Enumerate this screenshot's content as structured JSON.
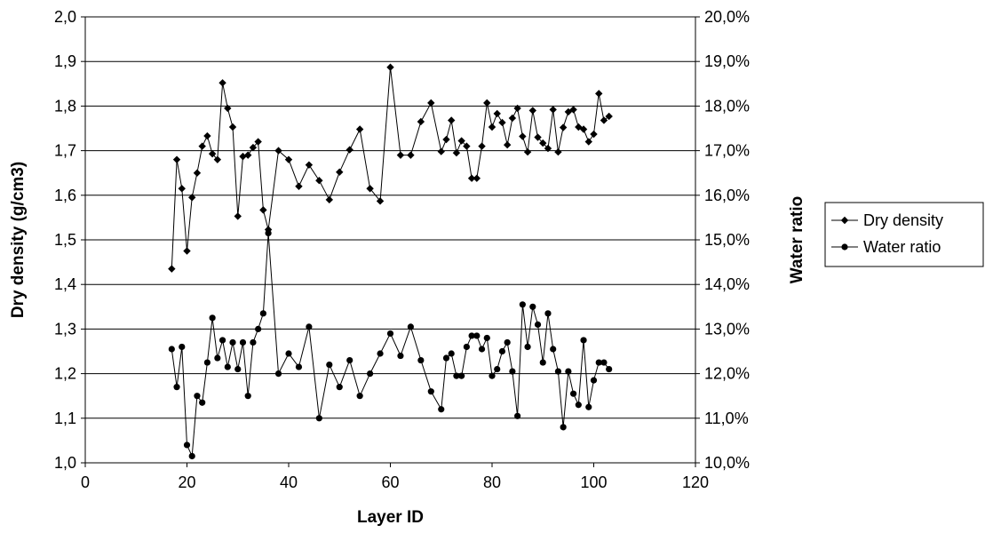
{
  "chart_data": {
    "type": "line",
    "title": "",
    "xlabel": "Layer ID",
    "ylabel": "Dry density (g/cm3)",
    "y2label": "Water ratio",
    "xlim": [
      0,
      120
    ],
    "ylim": [
      1.0,
      2.0
    ],
    "y2lim": [
      0.1,
      0.2
    ],
    "x_ticks": [
      "0",
      "20",
      "40",
      "60",
      "80",
      "100",
      "120"
    ],
    "y_ticks": [
      "1,0",
      "1,1",
      "1,2",
      "1,3",
      "1,4",
      "1,5",
      "1,6",
      "1,7",
      "1,8",
      "1,9",
      "2,0"
    ],
    "y2_ticks": [
      "10,0%",
      "11,0%",
      "12,0%",
      "13,0%",
      "14,0%",
      "15,0%",
      "16,0%",
      "17,0%",
      "18,0%",
      "19,0%",
      "20,0%"
    ],
    "grid": "horizontal",
    "legend_position": "right",
    "series": [
      {
        "name": "Dry density",
        "axis": "left",
        "marker": "diamond",
        "color": "#000000",
        "x": [
          17,
          18,
          19,
          20,
          21,
          22,
          23,
          24,
          25,
          26,
          27,
          28,
          29,
          30,
          31,
          32,
          33,
          34,
          35,
          36,
          38,
          40,
          42,
          44,
          46,
          48,
          50,
          52,
          54,
          56,
          58,
          60,
          62,
          64,
          66,
          68,
          70,
          71,
          72,
          73,
          74,
          75,
          76,
          77,
          78,
          79,
          80,
          81,
          82,
          83,
          84,
          85,
          86,
          87,
          88,
          89,
          90,
          91,
          92,
          93,
          94,
          95,
          96,
          97,
          98,
          99,
          100,
          101,
          102,
          103
        ],
        "values": [
          1.435,
          1.68,
          1.615,
          1.475,
          1.595,
          1.65,
          1.71,
          1.733,
          1.693,
          1.68,
          1.852,
          1.795,
          1.753,
          1.553,
          1.687,
          1.69,
          1.707,
          1.72,
          1.567,
          1.523,
          1.7,
          1.68,
          1.62,
          1.668,
          1.633,
          1.59,
          1.652,
          1.702,
          1.748,
          1.615,
          1.587,
          1.887,
          1.69,
          1.69,
          1.765,
          1.807,
          1.698,
          1.725,
          1.768,
          1.695,
          1.722,
          1.71,
          1.638,
          1.638,
          1.71,
          1.807,
          1.753,
          1.783,
          1.763,
          1.713,
          1.773,
          1.795,
          1.732,
          1.697,
          1.79,
          1.73,
          1.717,
          1.705,
          1.792,
          1.697,
          1.752,
          1.787,
          1.792,
          1.753,
          1.748,
          1.72,
          1.737,
          1.828,
          1.768,
          1.777
        ]
      },
      {
        "name": "Water ratio",
        "axis": "right",
        "marker": "circle",
        "color": "#000000",
        "x": [
          17,
          18,
          19,
          20,
          21,
          22,
          23,
          24,
          25,
          26,
          27,
          28,
          29,
          30,
          31,
          32,
          33,
          34,
          35,
          36,
          38,
          40,
          42,
          44,
          46,
          48,
          50,
          52,
          54,
          56,
          58,
          60,
          62,
          64,
          66,
          68,
          70,
          71,
          72,
          73,
          74,
          75,
          76,
          77,
          78,
          79,
          80,
          81,
          82,
          83,
          84,
          85,
          86,
          87,
          88,
          89,
          90,
          91,
          92,
          93,
          94,
          95,
          96,
          97,
          98,
          99,
          100,
          101,
          102,
          103
        ],
        "values": [
          0.1255,
          0.117,
          0.126,
          0.104,
          0.1015,
          0.115,
          0.1135,
          0.1225,
          0.1325,
          0.1235,
          0.1275,
          0.1215,
          0.127,
          0.121,
          0.127,
          0.115,
          0.127,
          0.13,
          0.1335,
          0.1515,
          0.12,
          0.1245,
          0.1215,
          0.1305,
          0.11,
          0.122,
          0.117,
          0.123,
          0.115,
          0.12,
          0.1245,
          0.129,
          0.124,
          0.1305,
          0.123,
          0.116,
          0.112,
          0.1235,
          0.1245,
          0.1195,
          0.1195,
          0.126,
          0.1285,
          0.1285,
          0.1255,
          0.128,
          0.1195,
          0.121,
          0.125,
          0.127,
          0.1205,
          0.1105,
          0.1355,
          0.126,
          0.135,
          0.131,
          0.1225,
          0.1335,
          0.1255,
          0.1205,
          0.108,
          0.1205,
          0.1155,
          0.113,
          0.1275,
          0.1125,
          0.1185,
          0.1225,
          0.1225,
          0.121
        ]
      }
    ]
  }
}
